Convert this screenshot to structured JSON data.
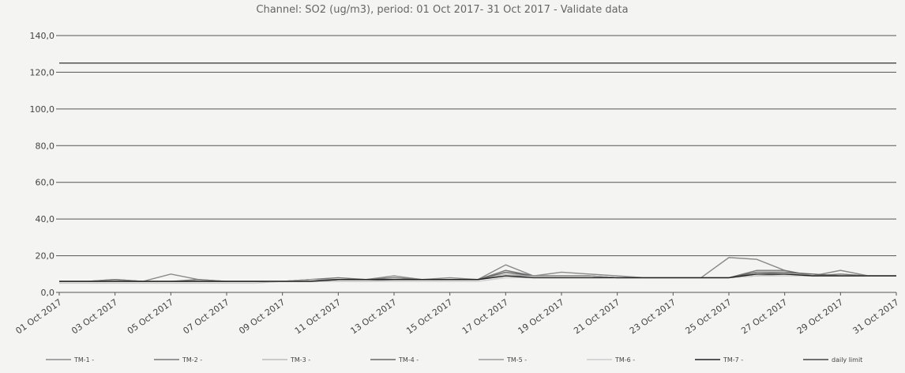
{
  "chart_data": {
    "type": "line",
    "title": "Channel: SO2 (ug/m3), period: 01 Oct 2017- 31 Oct 2017 - Validate data",
    "categories": [
      "01 Oct 2017",
      null,
      "03 Oct 2017",
      null,
      "05 Oct 2017",
      null,
      "07 Oct 2017",
      null,
      "09 Oct 2017",
      null,
      "11 Oct 2017",
      null,
      "13 Oct 2017",
      null,
      "15 Oct 2017",
      null,
      "17 Oct 2017",
      null,
      "19 Oct 2017",
      null,
      "21 Oct 2017",
      null,
      "23 Oct 2017",
      null,
      "25 Oct 2017",
      null,
      "27 Oct 2017",
      null,
      "29 Oct 2017",
      null,
      "31 Oct 2017"
    ],
    "ylim": [
      0,
      140
    ],
    "yticks": [
      {
        "value": 0,
        "label": "0,0"
      },
      {
        "value": 20,
        "label": "20,0"
      },
      {
        "value": 40,
        "label": "40,0"
      },
      {
        "value": 60,
        "label": "60,0"
      },
      {
        "value": 80,
        "label": "80,0"
      },
      {
        "value": 100,
        "label": "100,0"
      },
      {
        "value": 120,
        "label": "120,0"
      },
      {
        "value": 140,
        "label": "140,0"
      }
    ],
    "grid": true,
    "legend": "bottom",
    "series": [
      {
        "name": "TM-1 -",
        "color": "#8a8a8a",
        "values": [
          6,
          6,
          7,
          6,
          10,
          7,
          6,
          6,
          6,
          7,
          7,
          7,
          9,
          7,
          8,
          7,
          15,
          9,
          11,
          10,
          9,
          8,
          8,
          8,
          19,
          18,
          12,
          9,
          12,
          9,
          9
        ]
      },
      {
        "name": "TM-2 -",
        "color": "#777777",
        "values": [
          6,
          6,
          7,
          6,
          6,
          7,
          6,
          6,
          6,
          7,
          8,
          7,
          8,
          7,
          7,
          7,
          12,
          9,
          9,
          9,
          8,
          8,
          8,
          8,
          8,
          12,
          12,
          9,
          10,
          9,
          9
        ]
      },
      {
        "name": "TM-3 -",
        "color": "#bbbbbb",
        "values": [
          6,
          6,
          6,
          6,
          6,
          6,
          6,
          6,
          6,
          6,
          6,
          6,
          7,
          7,
          7,
          7,
          10,
          9,
          9,
          9,
          8,
          8,
          8,
          8,
          8,
          10,
          11,
          9,
          9,
          9,
          9
        ]
      },
      {
        "name": "TM-4 -",
        "color": "#666666",
        "values": [
          6,
          6,
          6,
          6,
          6,
          6,
          6,
          6,
          6,
          6,
          7,
          7,
          7,
          7,
          7,
          7,
          11,
          9,
          9,
          9,
          8,
          8,
          8,
          8,
          8,
          11,
          11,
          10,
          9,
          9,
          9
        ]
      },
      {
        "name": "TM-5 -",
        "color": "#999999",
        "values": [
          6,
          6,
          6,
          6,
          6,
          6,
          6,
          6,
          6,
          7,
          7,
          7,
          7,
          7,
          7,
          7,
          9,
          9,
          9,
          9,
          8,
          8,
          8,
          8,
          8,
          9,
          10,
          9,
          9,
          9,
          9
        ]
      },
      {
        "name": "TM-6 -",
        "color": "#cccccc",
        "values": [
          5,
          5,
          5,
          5,
          5,
          5,
          5,
          5,
          6,
          6,
          6,
          6,
          6,
          6,
          6,
          6,
          8,
          8,
          8,
          8,
          8,
          8,
          8,
          8,
          8,
          9,
          9,
          9,
          9,
          9,
          9
        ]
      },
      {
        "name": "TM-7 -",
        "color": "#222222",
        "values": [
          6,
          6,
          6,
          6,
          6,
          6,
          6,
          6,
          6,
          6,
          7,
          7,
          7,
          7,
          7,
          7,
          9,
          8,
          8,
          8,
          8,
          8,
          8,
          8,
          8,
          10,
          10,
          9,
          9,
          9,
          9
        ]
      },
      {
        "name": "daily limit",
        "color": "#444444",
        "values": [
          125,
          125,
          125,
          125,
          125,
          125,
          125,
          125,
          125,
          125,
          125,
          125,
          125,
          125,
          125,
          125,
          125,
          125,
          125,
          125,
          125,
          125,
          125,
          125,
          125,
          125,
          125,
          125,
          125,
          125,
          125
        ]
      }
    ]
  }
}
